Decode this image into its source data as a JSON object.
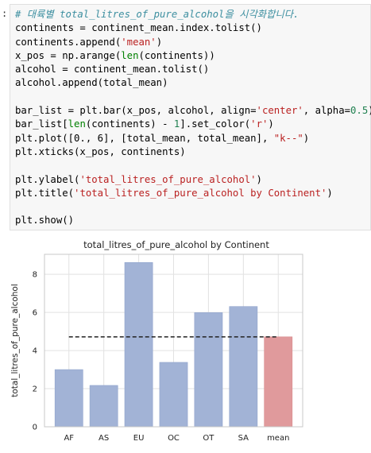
{
  "prompt_marker": ":",
  "code_lines": [
    [
      {
        "t": "cm",
        "v": "# 대륙별 total_litres_of_pure_alcohol을 시각화합니다."
      }
    ],
    [
      {
        "t": "",
        "v": "continents = continent_mean.index.tolist()"
      }
    ],
    [
      {
        "t": "",
        "v": "continents.append("
      },
      {
        "t": "str",
        "v": "'mean'"
      },
      {
        "t": "",
        "v": ")"
      }
    ],
    [
      {
        "t": "",
        "v": "x_pos = np.arange("
      },
      {
        "t": "bi",
        "v": "len"
      },
      {
        "t": "",
        "v": "(continents))"
      }
    ],
    [
      {
        "t": "",
        "v": "alcohol = continent_mean.tolist()"
      }
    ],
    [
      {
        "t": "",
        "v": "alcohol.append(total_mean)"
      }
    ],
    [
      {
        "t": "",
        "v": ""
      }
    ],
    [
      {
        "t": "",
        "v": "bar_list = plt.bar(x_pos, alcohol, align="
      },
      {
        "t": "str",
        "v": "'center'"
      },
      {
        "t": "",
        "v": ", alpha="
      },
      {
        "t": "num",
        "v": "0.5"
      },
      {
        "t": "",
        "v": ")"
      }
    ],
    [
      {
        "t": "",
        "v": "bar_list["
      },
      {
        "t": "bi",
        "v": "len"
      },
      {
        "t": "",
        "v": "(continents) - "
      },
      {
        "t": "num",
        "v": "1"
      },
      {
        "t": "",
        "v": "].set_color("
      },
      {
        "t": "str",
        "v": "'r'"
      },
      {
        "t": "",
        "v": ")"
      }
    ],
    [
      {
        "t": "",
        "v": "plt.plot([0., 6], [total_mean, total_mean], "
      },
      {
        "t": "str",
        "v": "\"k--\""
      },
      {
        "t": "",
        "v": ")"
      }
    ],
    [
      {
        "t": "",
        "v": "plt.xticks(x_pos, continents)"
      }
    ],
    [
      {
        "t": "",
        "v": ""
      }
    ],
    [
      {
        "t": "",
        "v": "plt.ylabel("
      },
      {
        "t": "str",
        "v": "'total_litres_of_pure_alcohol'"
      },
      {
        "t": "",
        "v": ")"
      }
    ],
    [
      {
        "t": "",
        "v": "plt.title("
      },
      {
        "t": "str",
        "v": "'total_litres_of_pure_alcohol by Continent'"
      },
      {
        "t": "",
        "v": ")"
      }
    ],
    [
      {
        "t": "",
        "v": ""
      }
    ],
    [
      {
        "t": "",
        "v": "plt.show()"
      }
    ]
  ],
  "chart_data": {
    "type": "bar",
    "title": "total_litres_of_pure_alcohol by Continent",
    "xlabel": "",
    "ylabel": "total_litres_of_pure_alcohol",
    "categories": [
      "AF",
      "AS",
      "EU",
      "OC",
      "OT",
      "SA",
      "mean"
    ],
    "values": [
      3.0,
      2.17,
      8.62,
      3.38,
      5.99,
      6.31,
      4.72
    ],
    "mean_line": {
      "value": 4.72,
      "x_range": [
        0,
        6
      ],
      "style": "k--"
    },
    "ylim": [
      0,
      9.05
    ],
    "yticks": [
      0,
      2,
      4,
      6,
      8
    ],
    "grid": true,
    "colors": {
      "bar": "#a2b3d6",
      "bar_border": "#8fa3cc",
      "mean_bar": "#e09a9c",
      "mean_line": "#222222",
      "grid": "#e2e2e2",
      "frame": "#c8c8c8"
    }
  }
}
